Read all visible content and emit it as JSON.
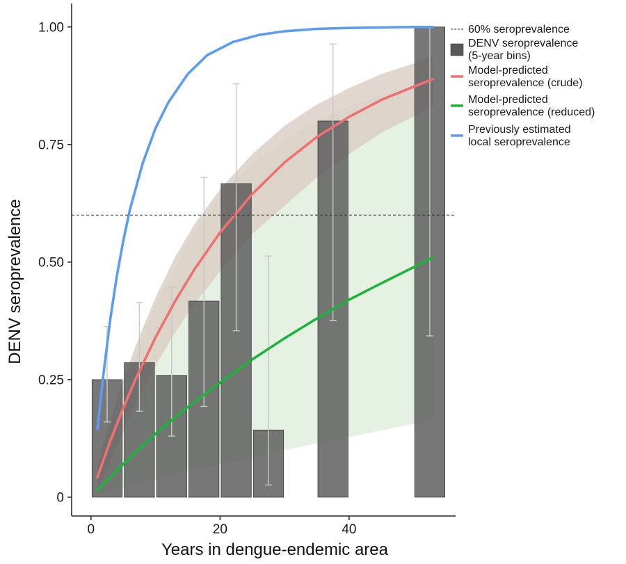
{
  "chart_data": {
    "type": "bar",
    "xlabel": "Years in dengue-endemic area",
    "ylabel": "DENV seroprevalence",
    "xlim": [
      -3,
      56.5
    ],
    "ylim": [
      -0.04,
      1.05
    ],
    "x_ticks": [
      0,
      20,
      40
    ],
    "x_tick_labels": [
      "0",
      "20",
      "40"
    ],
    "y_ticks": [
      0,
      0.25,
      0.5,
      0.75,
      1.0
    ],
    "y_tick_labels": [
      "0",
      "0.25",
      "0.50",
      "0.75",
      "1.00"
    ],
    "grid": false,
    "legend_position": "right",
    "reference_line": {
      "name": "60% seroprevalence",
      "y": 0.6,
      "style": "dashed",
      "color": "#333333"
    },
    "bars": {
      "name": "DENV seroprevalence (5-year bins)",
      "color": "#595959",
      "bin_width": 5,
      "items": [
        {
          "x_start": 0,
          "x_end": 5,
          "value": 0.25,
          "ci": [
            0.16,
            0.363
          ]
        },
        {
          "x_start": 5,
          "x_end": 10,
          "value": 0.286,
          "ci": [
            0.183,
            0.414
          ]
        },
        {
          "x_start": 10,
          "x_end": 15,
          "value": 0.259,
          "ci": [
            0.13,
            0.447
          ]
        },
        {
          "x_start": 15,
          "x_end": 20,
          "value": 0.417,
          "ci": [
            0.193,
            0.68
          ]
        },
        {
          "x_start": 20,
          "x_end": 25,
          "value": 0.667,
          "ci": [
            0.354,
            0.879
          ]
        },
        {
          "x_start": 25,
          "x_end": 30,
          "value": 0.143,
          "ci": [
            0.026,
            0.513
          ]
        },
        {
          "x_start": 35,
          "x_end": 40,
          "value": 0.8,
          "ci": [
            0.376,
            0.964
          ]
        },
        {
          "x_start": 50,
          "x_end": 55,
          "value": 1.0,
          "ci": [
            0.343,
            1.0
          ]
        }
      ]
    },
    "series": [
      {
        "name": "Model-predicted seroprevalence (crude)",
        "color": "#F07070",
        "band_color": "#D8C8C0",
        "x": [
          1,
          2,
          3,
          5,
          7,
          10,
          13,
          16,
          20,
          25,
          30,
          35,
          40,
          45,
          50,
          53
        ],
        "values": [
          0.042,
          0.082,
          0.12,
          0.19,
          0.254,
          0.34,
          0.416,
          0.484,
          0.563,
          0.645,
          0.712,
          0.766,
          0.809,
          0.845,
          0.873,
          0.889
        ],
        "lower": [
          0.02,
          0.05,
          0.08,
          0.14,
          0.2,
          0.28,
          0.35,
          0.41,
          0.48,
          0.56,
          0.62,
          0.68,
          0.73,
          0.775,
          0.81,
          0.83
        ],
        "upper": [
          0.065,
          0.118,
          0.165,
          0.25,
          0.325,
          0.425,
          0.51,
          0.58,
          0.655,
          0.73,
          0.79,
          0.835,
          0.87,
          0.9,
          0.922,
          0.94
        ]
      },
      {
        "name": "Model-predicted seroprevalence (reduced)",
        "color": "#1DB33A",
        "band_color": "#E2F0E0",
        "x": [
          1,
          5,
          10,
          15,
          20,
          25,
          30,
          35,
          40,
          45,
          50,
          53
        ],
        "values": [
          0.015,
          0.07,
          0.135,
          0.192,
          0.244,
          0.293,
          0.338,
          0.38,
          0.42,
          0.455,
          0.489,
          0.51
        ],
        "lower": [
          0.003,
          0.02,
          0.038,
          0.055,
          0.07,
          0.085,
          0.1,
          0.115,
          0.128,
          0.142,
          0.156,
          0.164
        ],
        "upper": [
          0.05,
          0.23,
          0.41,
          0.54,
          0.64,
          0.71,
          0.76,
          0.8,
          0.83,
          0.855,
          0.875,
          0.885
        ]
      },
      {
        "name": "Previously estimated local seroprevalence",
        "color": "#5B9BF0",
        "x": [
          1,
          2,
          3,
          4,
          5,
          6,
          8,
          10,
          12,
          15,
          18,
          22,
          26,
          30,
          35,
          40,
          45,
          50,
          53
        ],
        "values": [
          0.145,
          0.27,
          0.38,
          0.47,
          0.545,
          0.61,
          0.71,
          0.785,
          0.84,
          0.9,
          0.94,
          0.968,
          0.983,
          0.991,
          0.996,
          0.998,
          0.999,
          1.0,
          1.0
        ]
      }
    ],
    "legend": [
      {
        "key": "reference",
        "label_lines": [
          "60% seroprevalence"
        ]
      },
      {
        "key": "bars",
        "label_lines": [
          "DENV seroprevalence",
          "(5-year bins)"
        ]
      },
      {
        "key": "crude",
        "label_lines": [
          "Model-predicted",
          "seroprevalence (crude)"
        ]
      },
      {
        "key": "reduced",
        "label_lines": [
          "Model-predicted",
          "seroprevalence (reduced)"
        ]
      },
      {
        "key": "previous",
        "label_lines": [
          "Previously estimated",
          "local seroprevalence"
        ]
      }
    ]
  }
}
